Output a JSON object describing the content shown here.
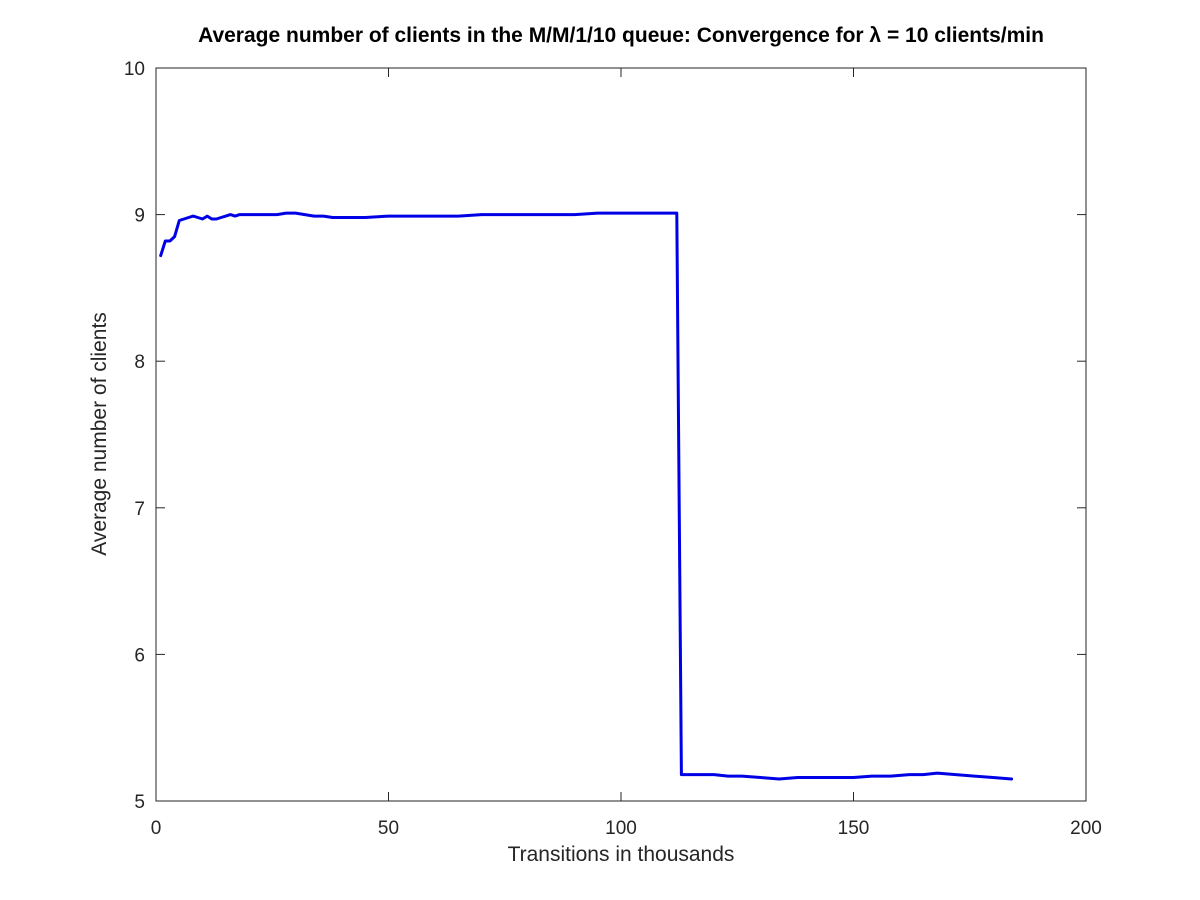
{
  "chart_data": {
    "type": "line",
    "title": "Average number of clients in the M/M/1/10 queue: Convergence for λ = 10 clients/min",
    "xlabel": "Transitions in thousands",
    "ylabel": "Average number of clients",
    "xlim": [
      0,
      200
    ],
    "ylim": [
      5,
      10
    ],
    "xticks": [
      "0",
      "50",
      "100",
      "150",
      "200"
    ],
    "yticks": [
      "5",
      "6",
      "7",
      "8",
      "9",
      "10"
    ],
    "grid": false,
    "legend": "none",
    "series": [
      {
        "color": "#0000e6",
        "x": [
          1,
          2,
          3,
          4,
          5,
          6,
          7,
          8,
          9,
          10,
          11,
          12,
          13,
          14,
          15,
          16,
          17,
          18,
          19,
          20,
          22,
          24,
          26,
          28,
          30,
          32,
          34,
          36,
          38,
          40,
          45,
          50,
          55,
          60,
          65,
          70,
          75,
          80,
          85,
          90,
          95,
          100,
          105,
          110,
          111,
          112,
          113,
          115,
          118,
          120,
          123,
          126,
          130,
          134,
          138,
          142,
          146,
          150,
          154,
          158,
          162,
          165,
          168,
          172,
          176,
          180,
          184
        ],
        "y": [
          8.72,
          8.82,
          8.82,
          8.85,
          8.96,
          8.97,
          8.98,
          8.99,
          8.98,
          8.97,
          8.99,
          8.97,
          8.97,
          8.98,
          8.99,
          9.0,
          8.99,
          9.0,
          9.0,
          9.0,
          9.0,
          9.0,
          9.0,
          9.01,
          9.01,
          9.0,
          8.99,
          8.99,
          8.98,
          8.98,
          8.98,
          8.99,
          8.99,
          8.99,
          8.99,
          9.0,
          9.0,
          9.0,
          9.0,
          9.0,
          9.01,
          9.01,
          9.01,
          9.01,
          9.01,
          9.01,
          5.18,
          5.18,
          5.18,
          5.18,
          5.17,
          5.17,
          5.16,
          5.15,
          5.16,
          5.16,
          5.16,
          5.16,
          5.17,
          5.17,
          5.18,
          5.18,
          5.19,
          5.18,
          5.17,
          5.16,
          5.15
        ]
      }
    ]
  }
}
